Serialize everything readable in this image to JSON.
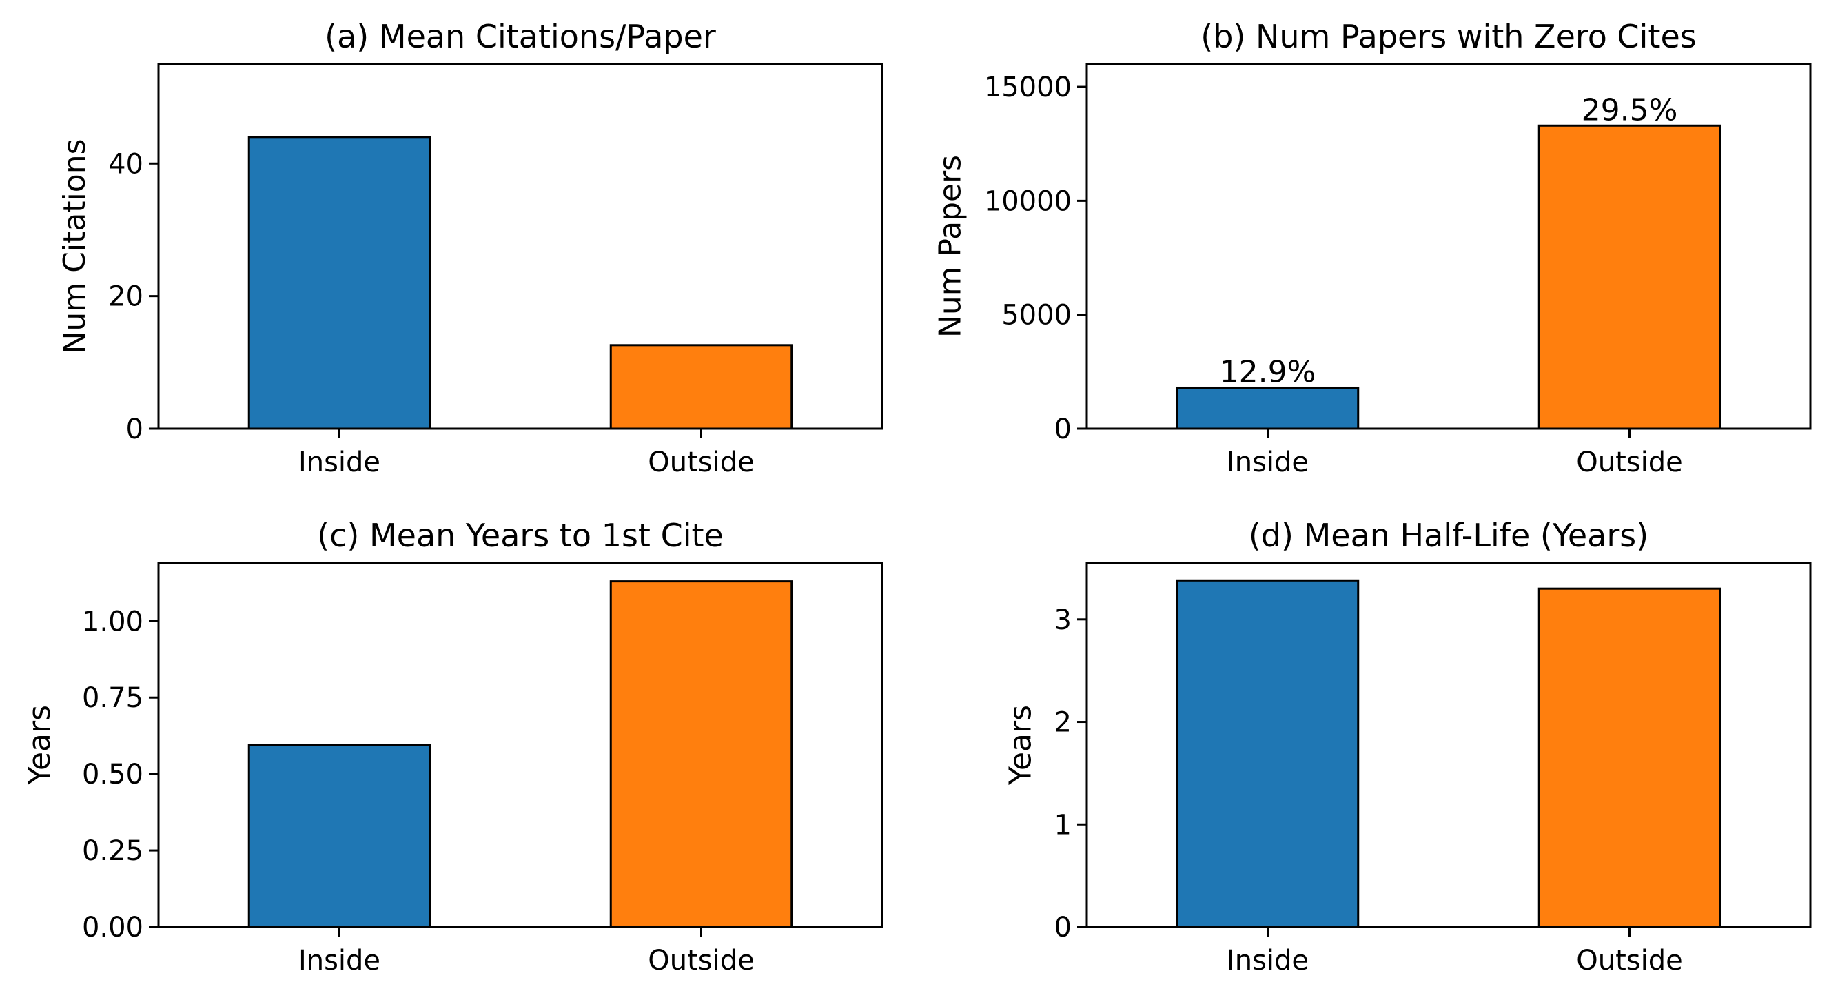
{
  "colors": {
    "Inside": "#1f77b4",
    "Outside": "#ff7f0e",
    "edge": "#000000"
  },
  "chart_data": [
    {
      "type": "bar",
      "title": "(a) Mean Citations/Paper",
      "xlabel": "",
      "ylabel": "Num Citations",
      "categories": [
        "Inside",
        "Outside"
      ],
      "values": [
        44,
        12.6
      ],
      "ylim": [
        0,
        55
      ],
      "yticks": [
        0,
        20,
        40
      ],
      "ytick_labels": [
        "0",
        "20",
        "40"
      ],
      "bar_labels": null
    },
    {
      "type": "bar",
      "title": "(b) Num Papers with Zero Cites",
      "xlabel": "",
      "ylabel": "Num Papers",
      "categories": [
        "Inside",
        "Outside"
      ],
      "values": [
        1800,
        13300
      ],
      "ylim": [
        0,
        16000
      ],
      "yticks": [
        0,
        5000,
        10000,
        15000
      ],
      "ytick_labels": [
        "0",
        "5000",
        "10000",
        "15000"
      ],
      "bar_labels": [
        "12.9%",
        "29.5%"
      ]
    },
    {
      "type": "bar",
      "title": "(c) Mean Years to 1st Cite",
      "xlabel": "",
      "ylabel": "Years",
      "categories": [
        "Inside",
        "Outside"
      ],
      "values": [
        0.595,
        1.13
      ],
      "ylim": [
        0,
        1.19
      ],
      "yticks": [
        0,
        0.25,
        0.5,
        0.75,
        1.0
      ],
      "ytick_labels": [
        "0.00",
        "0.25",
        "0.50",
        "0.75",
        "1.00"
      ],
      "bar_labels": null
    },
    {
      "type": "bar",
      "title": "(d) Mean Half-Life (Years)",
      "xlabel": "",
      "ylabel": "Years",
      "categories": [
        "Inside",
        "Outside"
      ],
      "values": [
        3.38,
        3.3
      ],
      "ylim": [
        0,
        3.55
      ],
      "yticks": [
        0,
        1,
        2,
        3
      ],
      "ytick_labels": [
        "0",
        "1",
        "2",
        "3"
      ],
      "bar_labels": null
    }
  ]
}
